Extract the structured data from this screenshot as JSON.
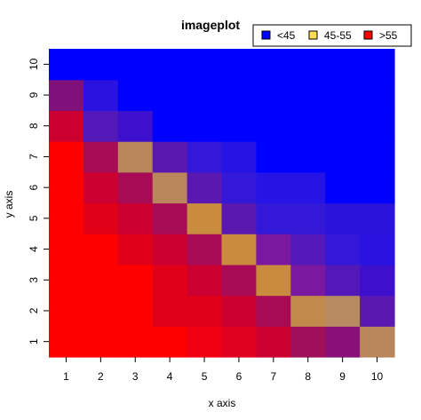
{
  "chart_data": {
    "type": "heatmap",
    "title": "imageplot",
    "xlabel": "x axis",
    "ylabel": "y axis",
    "x": [
      1,
      2,
      3,
      4,
      5,
      6,
      7,
      8,
      9,
      10
    ],
    "y": [
      1,
      2,
      3,
      4,
      5,
      6,
      7,
      8,
      9,
      10
    ],
    "legend": [
      {
        "label": "<45",
        "color": "#0000ff"
      },
      {
        "label": "45-55",
        "color": "#ffdd55"
      },
      {
        "label": ">55",
        "color": "#ff0000"
      }
    ],
    "legend_position": "top-right",
    "grid": false,
    "cell_colors": [
      [
        "#ff0000",
        "#ff0000",
        "#ff0000",
        "#ff0000",
        "#f00010",
        "#e0001e",
        "#cc0030",
        "#a0105a",
        "#8a1077",
        "#b8865a"
      ],
      [
        "#ff0000",
        "#ff0000",
        "#ff0000",
        "#e00018",
        "#e00018",
        "#cc0030",
        "#a80b55",
        "#c28a4a",
        "#b88a62",
        "#5a18b0"
      ],
      [
        "#ff0000",
        "#ff0000",
        "#ff0000",
        "#e00018",
        "#cc0030",
        "#a80b55",
        "#c98c3e",
        "#7a18a0",
        "#5218b8",
        "#3c10cc"
      ],
      [
        "#ff0000",
        "#ff0000",
        "#e00018",
        "#cc0030",
        "#a80b55",
        "#c98c3e",
        "#7a18a0",
        "#5218b8",
        "#3418d8",
        "#2a12e0"
      ],
      [
        "#ff0000",
        "#e00018",
        "#cc0030",
        "#a80b55",
        "#c98c3e",
        "#5a18b0",
        "#3418d8",
        "#3418d8",
        "#2a14dc",
        "#2a14dc"
      ],
      [
        "#ff0000",
        "#cc0030",
        "#a80b55",
        "#b8865a",
        "#5a18b0",
        "#3418d8",
        "#2614e4",
        "#2614e4",
        "#0000ff",
        "#0000ff"
      ],
      [
        "#ff0000",
        "#a80b55",
        "#b8865a",
        "#5a18b0",
        "#3418d8",
        "#2614e4",
        "#0000ff",
        "#0000ff",
        "#0000ff",
        "#0000ff"
      ],
      [
        "#cc0030",
        "#5218b8",
        "#3c10cc",
        "#0000ff",
        "#0000ff",
        "#0000ff",
        "#0000ff",
        "#0000ff",
        "#0000ff",
        "#0000ff"
      ],
      [
        "#80107a",
        "#2a12e0",
        "#0000ff",
        "#0000ff",
        "#0000ff",
        "#0000ff",
        "#0000ff",
        "#0000ff",
        "#0000ff",
        "#0000ff"
      ],
      [
        "#0000ff",
        "#0000ff",
        "#0000ff",
        "#0000ff",
        "#0000ff",
        "#0000ff",
        "#0000ff",
        "#0000ff",
        "#0000ff",
        "#0000ff"
      ]
    ]
  }
}
